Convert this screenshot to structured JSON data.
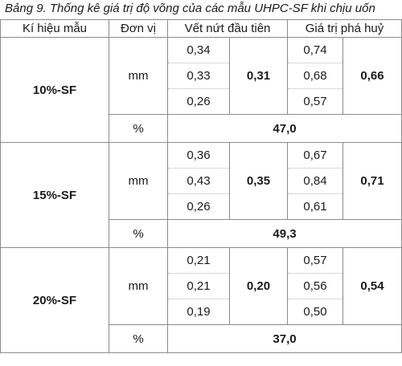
{
  "caption": "Bảng 9. Thống kê giá trị độ võng của các mẫu UHPC-SF khi chịu uốn",
  "headers": {
    "sample": "Kí hiệu mẫu",
    "unit": "Đơn vị",
    "first_crack": "Vết nứt đầu tiên",
    "failure": "Giá trị phá huỷ"
  },
  "groups": [
    {
      "sample": "10%-SF",
      "unit_mm": "mm",
      "first_crack_values": [
        "0,34",
        "0,33",
        "0,26"
      ],
      "first_crack_avg": "0,31",
      "failure_values": [
        "0,74",
        "0,68",
        "0,57"
      ],
      "failure_avg": "0,66",
      "unit_pct": "%",
      "pct_value": "47,0"
    },
    {
      "sample": "15%-SF",
      "unit_mm": "mm",
      "first_crack_values": [
        "0,36",
        "0,43",
        "0,26"
      ],
      "first_crack_avg": "0,35",
      "failure_values": [
        "0,67",
        "0,84",
        "0,61"
      ],
      "failure_avg": "0,71",
      "unit_pct": "%",
      "pct_value": "49,3"
    },
    {
      "sample": "20%-SF",
      "unit_mm": "mm",
      "first_crack_values": [
        "0,21",
        "0,21",
        "0,19"
      ],
      "first_crack_avg": "0,20",
      "failure_values": [
        "0,57",
        "0,56",
        "0,50"
      ],
      "failure_avg": "0,54",
      "unit_pct": "%",
      "pct_value": "37,0"
    }
  ]
}
